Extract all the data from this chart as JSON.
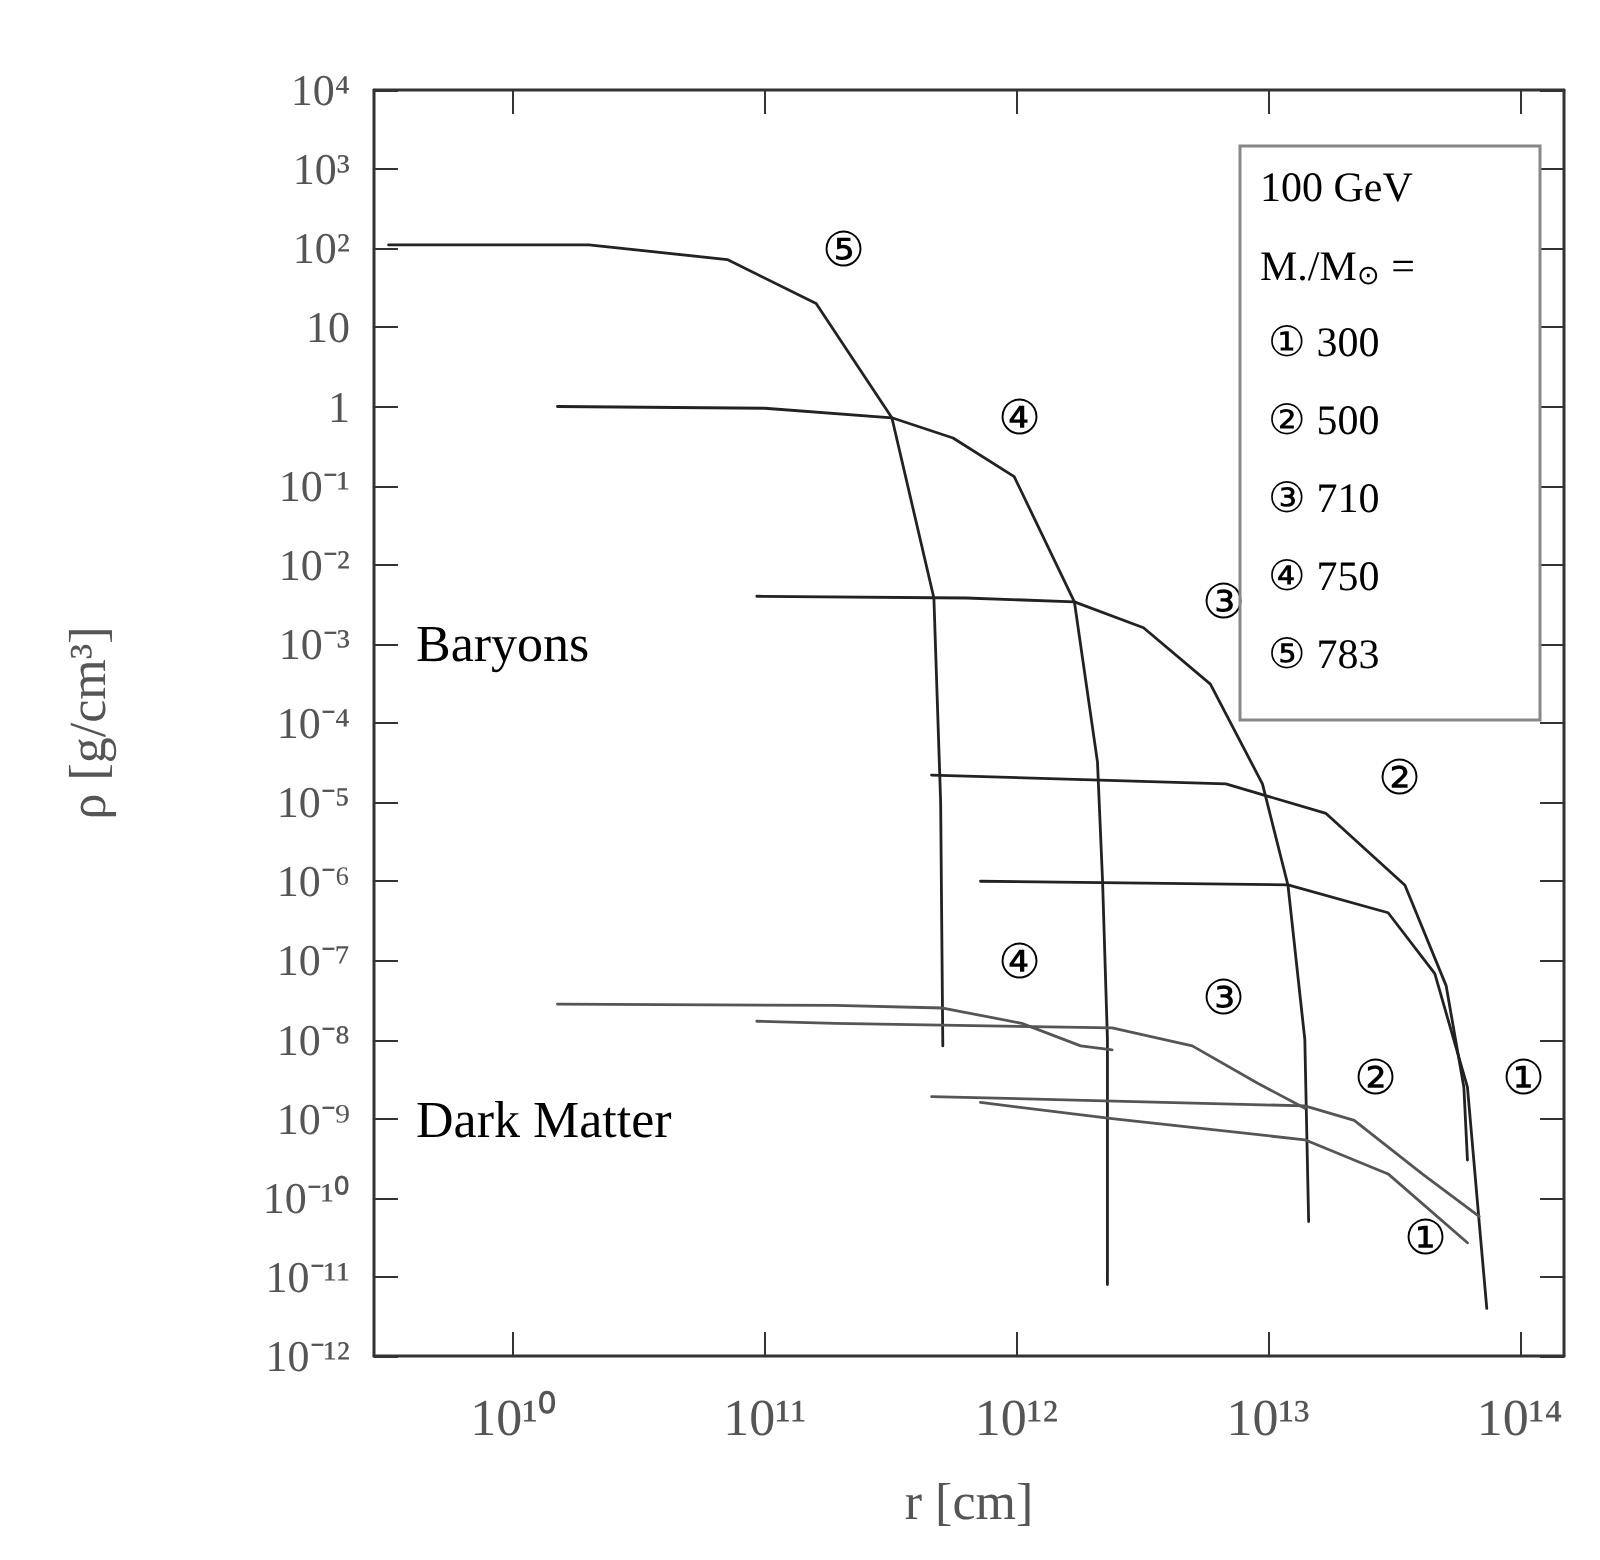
{
  "chart_data": {
    "type": "line",
    "xlabel": "r [cm]",
    "ylabel": "ρ [g/cm³]",
    "log": "xy",
    "grid": false,
    "legend_title": "100 GeV\nM./M$_{⊙}$ =",
    "xlim": [
      2800000000.0,
      150000000000000.0
    ],
    "ylim": [
      1e-12,
      10000
    ],
    "xticks": [
      {
        "value": 10000000000.0,
        "label": "10¹⁰"
      },
      {
        "value": 100000000000.0,
        "label": "10¹¹"
      },
      {
        "value": 1000000000000.0,
        "label": "10¹²"
      },
      {
        "value": 10000000000000.0,
        "label": "10¹³"
      },
      {
        "value": 100000000000000.0,
        "label": "10¹⁴"
      }
    ],
    "yticks": [
      {
        "value": 10000,
        "label": "10⁴"
      },
      {
        "value": 1000,
        "label": "10³"
      },
      {
        "value": 100,
        "label": "10²"
      },
      10,
      1,
      {
        "value": 0.1,
        "label": "10⁻¹"
      },
      {
        "value": 0.01,
        "label": "10⁻²"
      },
      {
        "value": 0.001,
        "label": "10⁻³"
      },
      {
        "value": 0.0001,
        "label": "10⁻⁴"
      },
      {
        "value": 1e-05,
        "label": "10⁻⁵"
      },
      {
        "value": 1e-06,
        "label": "10⁻⁶"
      },
      {
        "value": 1e-07,
        "label": "10⁻⁷"
      },
      {
        "value": 1e-08,
        "label": "10⁻⁸"
      },
      {
        "value": 1e-09,
        "label": "10⁻⁹"
      },
      {
        "value": 1e-10,
        "label": "10⁻¹⁰"
      },
      {
        "value": 1e-11,
        "label": "10⁻¹¹"
      },
      {
        "value": 1e-12,
        "label": "10⁻¹²"
      }
    ],
    "series": [
      {
        "color": "#222222",
        "x": [
          720000000000.0,
          12000000000000.0,
          30000000000000.0,
          46000000000000.0,
          62000000000000.0,
          69000000000000.0,
          74000000000000.0
        ],
        "values": [
          1e-06,
          9e-07,
          4e-07,
          6.8e-08,
          2.5e-09,
          5e-11,
          4e-12
        ]
      },
      {
        "color": "#222222",
        "x": [
          460000000000.0,
          6800000000000.0,
          17000000000000.0,
          35000000000000.0,
          51000000000000.0,
          60000000000000.0,
          62000000000000.0
        ],
        "values": [
          2.2e-05,
          1.7e-05,
          7.2e-06,
          8.9e-07,
          4.8e-08,
          2.5e-09,
          3e-10
        ]
      },
      {
        "color": "#222222",
        "x": [
          93000000000.0,
          630000000000.0,
          1700000000000.0,
          3200000000000.0,
          5900000000000.0,
          9500000000000.0,
          12000000000000.0,
          14000000000000.0,
          14500000000000.0
        ],
        "values": [
          0.004,
          0.0038,
          0.0034,
          0.0016,
          0.00031,
          1.7e-05,
          8.9e-07,
          1e-08,
          5e-11
        ]
      },
      {
        "color": "#222222",
        "x": [
          15000000000.0,
          100000000000.0,
          320000000000.0,
          560000000000.0,
          980000000000.0,
          1700000000000.0,
          2100000000000.0,
          2200000000000.0,
          2300000000000.0,
          2300000000000.0
        ],
        "values": [
          1.0,
          0.95,
          0.72,
          0.4,
          0.13,
          0.0034,
          3.2e-05,
          1e-06,
          1e-08,
          8e-12
        ]
      },
      {
        "color": "#222222",
        "x": [
          3200000000.0,
          20000000000.0,
          71000000000.0,
          160000000000.0,
          320000000000.0,
          470000000000.0,
          500000000000.0,
          510000000000.0
        ],
        "values": [
          110,
          110,
          72,
          20,
          0.72,
          0.0038,
          1e-05,
          8.3e-09
        ]
      },
      {
        "color": "#555555",
        "x": [
          720000000000.0,
          2400000000000.0,
          14000000000000.0,
          30000000000000.0,
          62000000000000.0
        ],
        "values": [
          1.6e-09,
          1e-09,
          5.4e-10,
          2e-10,
          2.7e-11
        ]
      },
      {
        "color": "#555555",
        "x": [
          460000000000.0,
          14000000000000.0,
          22000000000000.0,
          41000000000000.0,
          69000000000000.0
        ],
        "values": [
          1.9e-09,
          1.45e-09,
          9.5e-10,
          2e-10,
          5.8e-11
        ]
      },
      {
        "color": "#555555",
        "x": [
          93000000000.0,
          190000000000.0,
          2400000000000.0,
          5000000000000.0,
          9100000000000.0,
          14000000000000.0
        ],
        "values": [
          1.7e-08,
          1.6e-08,
          1.4e-08,
          8.3e-09,
          2.8e-09,
          1.35e-09
        ]
      },
      {
        "color": "#555555",
        "x": [
          15000000000.0,
          190000000000.0,
          510000000000.0,
          1050000000000.0,
          1800000000000.0,
          2400000000000.0
        ],
        "values": [
          2.8e-08,
          2.7e-08,
          2.5e-08,
          1.6e-08,
          8.3e-09,
          7.4e-09
        ]
      }
    ],
    "annotations": [
      "⑤",
      "④",
      "③",
      "②",
      "①",
      "④",
      "③",
      "②",
      "①",
      "Baryons",
      "Dark Matter",
      "① 300",
      "② 500",
      "③ 710",
      "④ 750",
      "⑤ 783"
    ]
  }
}
